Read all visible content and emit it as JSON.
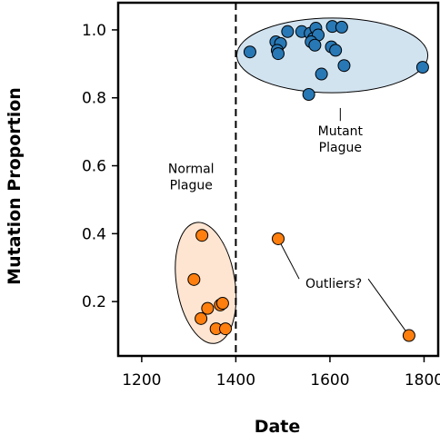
{
  "chart_data": {
    "type": "scatter",
    "xlabel": "Date",
    "ylabel": "Mutation Proportion",
    "xlim": [
      1150,
      1830
    ],
    "ylim": [
      0.04,
      1.08
    ],
    "xticks": [
      "1200",
      "1400",
      "1600",
      "1800"
    ],
    "yticks": [
      "0.2",
      "0.4",
      "0.6",
      "0.8",
      "1.0"
    ],
    "grid": false,
    "colors": {
      "blue": "#2878b5",
      "orange": "#ff7f0e",
      "blue_fill": "#d2e3f0",
      "orange_fill": "#fde5d2"
    },
    "series": [
      {
        "color": "#2878b5",
        "points": [
          [
            1430,
            0.935
          ],
          [
            1485,
            0.965
          ],
          [
            1495,
            0.96
          ],
          [
            1488,
            0.94
          ],
          [
            1490,
            0.93
          ],
          [
            1510,
            0.995
          ],
          [
            1540,
            0.995
          ],
          [
            1558,
            0.99
          ],
          [
            1565,
            0.975
          ],
          [
            1570,
            1.005
          ],
          [
            1575,
            0.985
          ],
          [
            1560,
            0.965
          ],
          [
            1568,
            0.955
          ],
          [
            1605,
            1.01
          ],
          [
            1625,
            1.008
          ],
          [
            1603,
            0.95
          ],
          [
            1612,
            0.94
          ],
          [
            1582,
            0.87
          ],
          [
            1630,
            0.895
          ],
          [
            1555,
            0.81
          ],
          [
            1797,
            0.89
          ]
        ]
      },
      {
        "color": "#ff7f0e",
        "points": [
          [
            1328,
            0.395
          ],
          [
            1311,
            0.265
          ],
          [
            1340,
            0.18
          ],
          [
            1367,
            0.19
          ],
          [
            1372,
            0.195
          ],
          [
            1326,
            0.15
          ],
          [
            1358,
            0.12
          ],
          [
            1378,
            0.12
          ],
          [
            1490,
            0.385
          ],
          [
            1768,
            0.1
          ]
        ]
      }
    ],
    "vline": {
      "x": 1400,
      "style": "dashed"
    },
    "ellipses": [
      {
        "label": "Mutant Plague",
        "cx": 1605,
        "cy": 0.925,
        "rx": 203,
        "ry": 0.11,
        "angle": 0,
        "fill": "#d2e3f0"
      },
      {
        "label": "Normal Plague",
        "cx": 1336,
        "cy": 0.255,
        "rx": 62,
        "ry": 0.18,
        "angle": -9,
        "fill": "#fde5d2"
      }
    ],
    "annotations": [
      {
        "text": "Mutant Plague",
        "lines": [
          "Mutant",
          "Plague"
        ],
        "text_at": [
          1622,
          0.665
        ],
        "line_to": [
          1622,
          0.77
        ]
      },
      {
        "text": "Normal Plague",
        "lines": [
          "Normal",
          "Plague"
        ],
        "text_at": [
          1305,
          0.555
        ],
        "line_to": null
      },
      {
        "text": "Outliers?",
        "lines": [
          "Outliers?"
        ],
        "text_at": [
          1608,
          0.24
        ],
        "lines_to": [
          [
            1490,
            0.385
          ],
          [
            1768,
            0.1
          ]
        ]
      }
    ]
  }
}
